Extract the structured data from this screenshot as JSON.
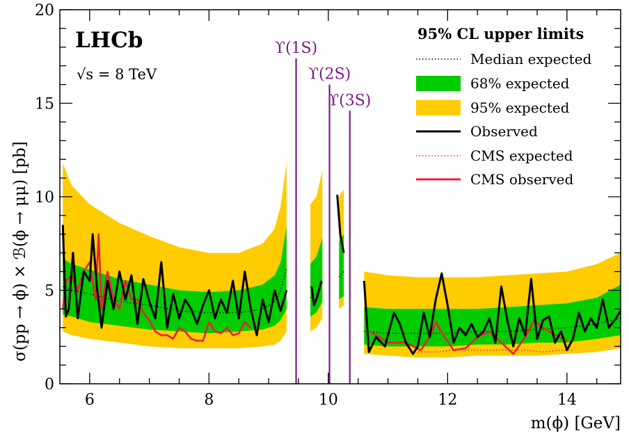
{
  "chart_data": {
    "type": "line",
    "title": "",
    "experiment": "LHCb",
    "energy": "√s = 8 TeV",
    "xlabel": "m(ϕ) [GeV]",
    "ylabel": "σ(pp → ϕ) × ℬ(ϕ → μμ) [pb]",
    "xlim": [
      5.5,
      14.9
    ],
    "ylim": [
      0,
      20
    ],
    "xticks": [
      "6",
      "8",
      "10",
      "12",
      "14"
    ],
    "yticks": [
      "0",
      "5",
      "10",
      "15",
      "20"
    ],
    "legend": {
      "title": "95% CL upper limits",
      "placement": "top-right",
      "entries": [
        "Median expected",
        "68% expected",
        "95% expected",
        "Observed",
        "CMS expected",
        "CMS observed"
      ]
    },
    "colors": {
      "band95": "#ffcc00",
      "band68": "#00cc00",
      "observed": "#000000",
      "cms": "#e8203a",
      "upsilon": "#7b1a86"
    },
    "upsilon_lines": [
      {
        "label": "ϒ(1S)",
        "mass": 9.46,
        "top": 17.4
      },
      {
        "label": "ϒ(2S)",
        "mass": 10.02,
        "top": 16.0
      },
      {
        "label": "ϒ(3S)",
        "mass": 10.36,
        "top": 14.6
      }
    ],
    "segments": [
      {
        "x": [
          5.55,
          5.7,
          6.0,
          6.5,
          7.0,
          7.5,
          8.0,
          8.5,
          8.9,
          9.1,
          9.2,
          9.3
        ],
        "median": [
          5.2,
          5.0,
          4.8,
          4.4,
          4.2,
          3.9,
          3.8,
          3.8,
          4.0,
          4.4,
          5.0,
          6.2
        ],
        "band68": [
          [
            3.7,
            6.7
          ],
          [
            3.6,
            6.4
          ],
          [
            3.3,
            6.1
          ],
          [
            3.1,
            5.6
          ],
          [
            2.9,
            5.3
          ],
          [
            2.8,
            5.0
          ],
          [
            2.7,
            4.9
          ],
          [
            2.8,
            5.0
          ],
          [
            2.9,
            5.3
          ],
          [
            3.1,
            5.8
          ],
          [
            3.4,
            6.5
          ],
          [
            4.0,
            8.4
          ]
        ],
        "band95": [
          [
            2.8,
            11.8
          ],
          [
            2.6,
            10.6
          ],
          [
            2.4,
            9.6
          ],
          [
            2.2,
            8.6
          ],
          [
            2.0,
            7.9
          ],
          [
            1.9,
            7.3
          ],
          [
            1.9,
            7.0
          ],
          [
            1.9,
            7.0
          ],
          [
            2.0,
            7.5
          ],
          [
            2.1,
            8.3
          ],
          [
            2.3,
            9.5
          ],
          [
            2.8,
            11.8
          ]
        ]
      },
      {
        "x": [
          9.7,
          9.8,
          9.9
        ],
        "median": [
          4.6,
          4.8,
          5.4
        ],
        "band68": [
          [
            3.6,
            6.4
          ],
          [
            3.8,
            6.8
          ],
          [
            4.4,
            7.8
          ]
        ],
        "band95": [
          [
            2.8,
            9.6
          ],
          [
            3.0,
            10.0
          ],
          [
            3.5,
            11.4
          ]
        ]
      },
      {
        "x": [
          10.18,
          10.26
        ],
        "median": [
          5.7,
          6.0
        ],
        "band68": [
          [
            4.5,
            7.6
          ],
          [
            4.7,
            8.0
          ]
        ],
        "band95": [
          [
            4.0,
            10.0
          ],
          [
            4.2,
            10.4
          ]
        ]
      },
      {
        "x": [
          10.6,
          11.0,
          11.5,
          12.0,
          12.5,
          13.0,
          13.5,
          14.0,
          14.5,
          14.9
        ],
        "median": [
          2.8,
          2.7,
          2.7,
          2.7,
          2.8,
          2.8,
          2.9,
          3.0,
          3.2,
          3.5
        ],
        "band68": [
          [
            2.1,
            4.1
          ],
          [
            2.0,
            4.0
          ],
          [
            2.0,
            4.0
          ],
          [
            2.0,
            4.0
          ],
          [
            2.1,
            4.0
          ],
          [
            2.1,
            4.1
          ],
          [
            2.2,
            4.2
          ],
          [
            2.2,
            4.3
          ],
          [
            2.4,
            4.6
          ],
          [
            2.6,
            5.3
          ]
        ],
        "band95": [
          [
            1.6,
            6.0
          ],
          [
            1.5,
            5.8
          ],
          [
            1.4,
            5.7
          ],
          [
            1.4,
            5.7
          ],
          [
            1.5,
            5.7
          ],
          [
            1.5,
            5.8
          ],
          [
            1.5,
            5.9
          ],
          [
            1.6,
            6.0
          ],
          [
            1.7,
            6.4
          ],
          [
            1.9,
            7.0
          ]
        ]
      }
    ],
    "observed": [
      {
        "x": [
          5.55,
          5.6,
          5.65,
          5.72,
          5.8,
          5.9,
          6.0,
          6.05,
          6.12,
          6.2,
          6.3,
          6.4,
          6.5,
          6.6,
          6.7,
          6.8,
          6.9,
          7.0,
          7.1,
          7.2,
          7.3,
          7.4,
          7.5,
          7.6,
          7.7,
          7.8,
          7.9,
          8.0,
          8.1,
          8.2,
          8.3,
          8.4,
          8.5,
          8.6,
          8.7,
          8.8,
          8.9,
          9.0,
          9.1,
          9.2,
          9.3
        ],
        "y": [
          8.5,
          3.6,
          4.0,
          7.0,
          3.5,
          6.0,
          5.5,
          8.0,
          5.2,
          3.0,
          5.5,
          4.0,
          6.0,
          4.5,
          5.8,
          3.2,
          5.6,
          4.4,
          3.5,
          6.5,
          3.0,
          4.8,
          3.5,
          4.5,
          4.0,
          3.2,
          4.2,
          5.0,
          3.5,
          4.5,
          3.8,
          5.5,
          3.5,
          6.0,
          4.0,
          2.6,
          4.5,
          3.3,
          5.0,
          3.9,
          5.0
        ]
      },
      {
        "x": [
          9.72,
          9.76,
          9.82,
          9.88
        ],
        "y": [
          5.2,
          4.2,
          4.7,
          5.5
        ]
      },
      {
        "x": [
          10.15,
          10.2,
          10.26
        ],
        "y": [
          10.1,
          8.0,
          7.0
        ]
      },
      {
        "x": [
          10.6,
          10.68,
          10.8,
          10.95,
          11.1,
          11.2,
          11.3,
          11.42,
          11.5,
          11.6,
          11.7,
          11.8,
          11.9,
          12.0,
          12.1,
          12.2,
          12.3,
          12.4,
          12.5,
          12.6,
          12.7,
          12.8,
          12.9,
          13.0,
          13.1,
          13.2,
          13.3,
          13.4,
          13.5,
          13.6,
          13.7,
          13.8,
          13.9,
          14.0,
          14.1,
          14.2,
          14.3,
          14.4,
          14.5,
          14.6,
          14.7,
          14.8,
          14.9
        ],
        "y": [
          5.5,
          1.7,
          2.5,
          2.0,
          3.8,
          3.2,
          2.2,
          1.6,
          2.0,
          3.8,
          2.5,
          4.5,
          5.9,
          4.2,
          2.2,
          3.0,
          2.6,
          3.2,
          2.5,
          2.8,
          3.5,
          2.2,
          5.2,
          3.4,
          2.0,
          3.5,
          2.6,
          5.6,
          2.4,
          3.4,
          3.6,
          2.2,
          2.8,
          1.8,
          2.4,
          3.8,
          2.8,
          3.5,
          3.0,
          4.5,
          3.0,
          3.4,
          3.9
        ]
      }
    ],
    "cms_expected": {
      "x": [
        11.5,
        11.8,
        12.1,
        12.4,
        12.7,
        13.0,
        13.3,
        13.6,
        13.9,
        14.1
      ],
      "y": [
        1.7,
        1.7,
        1.8,
        1.8,
        1.8,
        1.8,
        1.8,
        1.7,
        1.8,
        1.8
      ]
    },
    "cms_observed": [
      {
        "x": [
          5.55,
          5.6,
          5.7,
          5.8,
          5.9,
          6.0,
          6.1,
          6.15,
          6.2,
          6.3,
          6.4,
          6.5,
          6.6,
          6.7,
          6.8,
          6.9,
          7.0,
          7.1,
          7.2,
          7.3,
          7.4,
          7.5,
          7.6,
          7.7,
          7.8,
          7.9,
          8.0,
          8.1,
          8.2,
          8.3,
          8.4,
          8.5,
          8.6,
          8.7
        ],
        "y": [
          4.0,
          5.5,
          5.8,
          5.0,
          6.0,
          6.5,
          4.5,
          8.0,
          4.0,
          6.0,
          4.5,
          4.0,
          5.5,
          4.5,
          4.5,
          3.8,
          3.4,
          2.8,
          2.6,
          2.6,
          2.4,
          3.0,
          2.8,
          2.4,
          2.3,
          2.3,
          3.3,
          2.8,
          2.7,
          3.0,
          2.6,
          2.7,
          3.3,
          3.0
        ]
      },
      {
        "x": [
          10.7,
          11.0,
          11.3,
          11.55,
          11.7,
          11.8,
          11.95,
          12.1,
          12.3,
          12.5,
          12.7,
          12.9,
          13.1,
          13.3,
          13.45,
          13.6,
          13.8,
          14.0
        ],
        "y": [
          2.8,
          2.2,
          2.2,
          1.8,
          2.5,
          3.3,
          2.5,
          1.8,
          1.9,
          2.5,
          2.8,
          2.2,
          1.6,
          2.5,
          3.4,
          3.0,
          2.6,
          2.3
        ]
      }
    ]
  }
}
